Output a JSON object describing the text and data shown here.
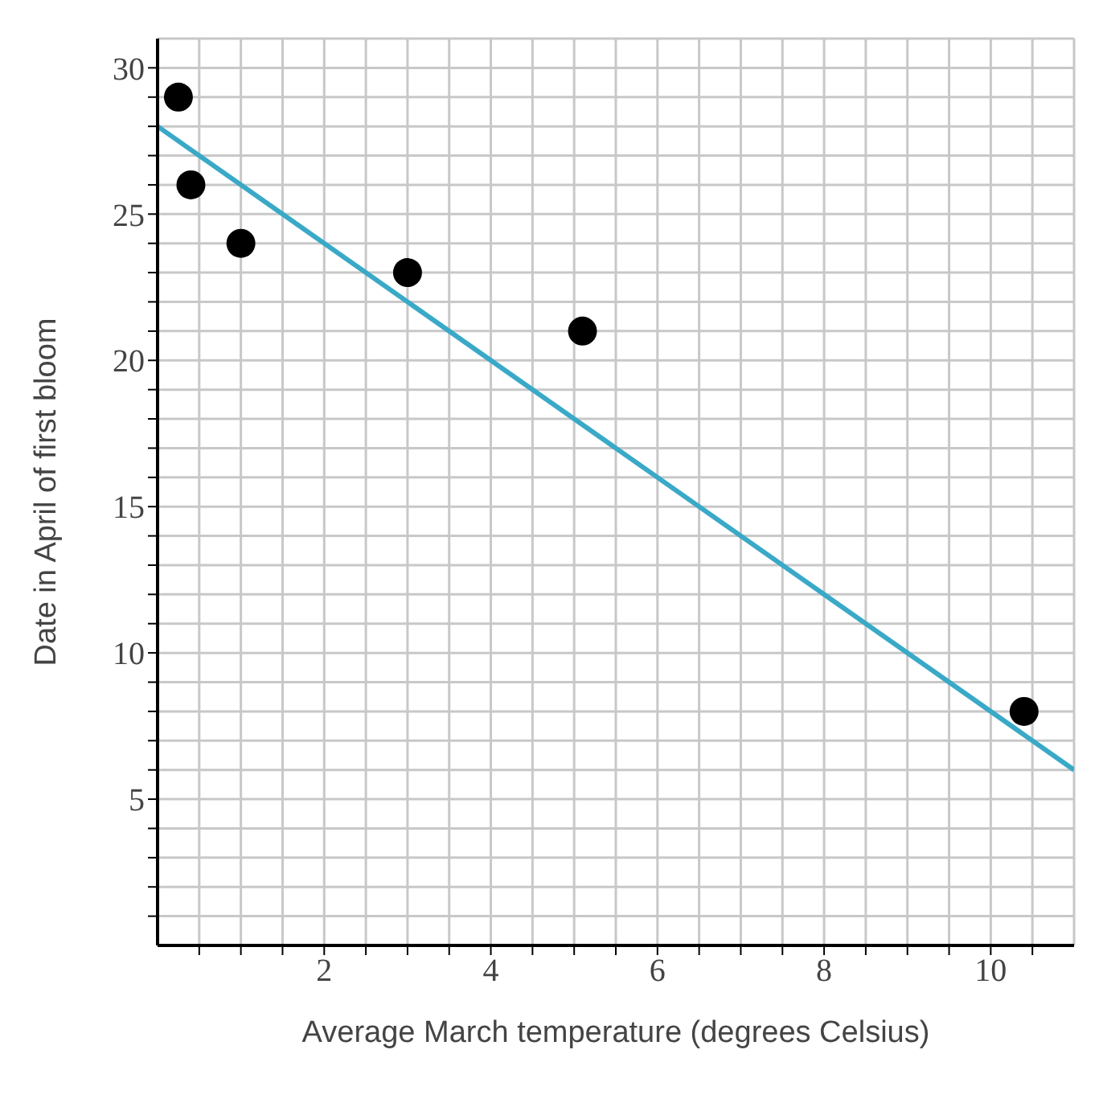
{
  "chart_data": {
    "type": "scatter",
    "xlabel": "Average March temperature (degrees Celsius)",
    "ylabel": "Date in April of first bloom",
    "xlim": [
      0,
      11
    ],
    "ylim": [
      0,
      31
    ],
    "xticks": [
      {
        "value": 0.5,
        "label": null
      },
      {
        "value": 1,
        "label": null
      },
      {
        "value": 1.5,
        "label": null
      },
      2,
      {
        "value": 2.5,
        "label": null
      },
      {
        "value": 3,
        "label": null
      },
      {
        "value": 3.5,
        "label": null
      },
      4,
      {
        "value": 4.5,
        "label": null
      },
      {
        "value": 5,
        "label": null
      },
      {
        "value": 5.5,
        "label": null
      },
      6,
      {
        "value": 6.5,
        "label": null
      },
      {
        "value": 7,
        "label": null
      },
      {
        "value": 7.5,
        "label": null
      },
      8,
      {
        "value": 8.5,
        "label": null
      },
      {
        "value": 9,
        "label": null
      },
      {
        "value": 9.5,
        "label": null
      },
      10,
      {
        "value": 10.5,
        "label": null
      }
    ],
    "yticks": [
      {
        "value": 1,
        "label": null
      },
      {
        "value": 2,
        "label": null
      },
      {
        "value": 3,
        "label": null
      },
      {
        "value": 4,
        "label": null
      },
      5,
      {
        "value": 6,
        "label": null
      },
      {
        "value": 7,
        "label": null
      },
      {
        "value": 8,
        "label": null
      },
      {
        "value": 9,
        "label": null
      },
      10,
      {
        "value": 11,
        "label": null
      },
      {
        "value": 12,
        "label": null
      },
      {
        "value": 13,
        "label": null
      },
      {
        "value": 14,
        "label": null
      },
      15,
      {
        "value": 16,
        "label": null
      },
      {
        "value": 17,
        "label": null
      },
      {
        "value": 18,
        "label": null
      },
      {
        "value": 19,
        "label": null
      },
      20,
      {
        "value": 21,
        "label": null
      },
      {
        "value": 22,
        "label": null
      },
      {
        "value": 23,
        "label": null
      },
      {
        "value": 24,
        "label": null
      },
      25,
      {
        "value": 26,
        "label": null
      },
      {
        "value": 27,
        "label": null
      },
      {
        "value": 28,
        "label": null
      },
      {
        "value": 29,
        "label": null
      },
      30
    ],
    "grid": true,
    "series": [
      {
        "marker": "circle",
        "color": "#000000",
        "x": [
          0.25,
          0.4,
          1,
          3,
          5.1,
          10.4
        ],
        "values": [
          29,
          26,
          24,
          23,
          21,
          8
        ]
      },
      {
        "type": "line",
        "color": "#3aa9c8",
        "x": [
          0,
          11
        ],
        "values": [
          28,
          6
        ]
      }
    ]
  }
}
